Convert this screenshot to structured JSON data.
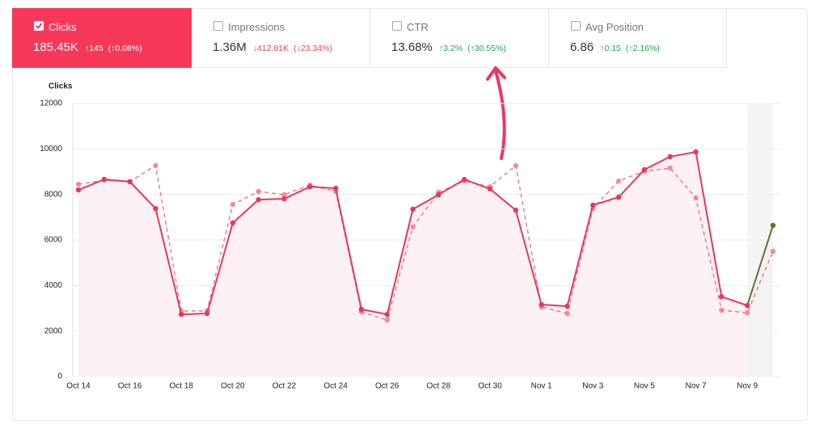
{
  "cards": [
    {
      "label": "Clicks",
      "value": "185.45K",
      "change": "↑145",
      "change_pct": "(↑0.08%)",
      "selected": true,
      "change_color": "#ffffff"
    },
    {
      "label": "Impressions",
      "value": "1.36M",
      "change": "↓412.81K",
      "change_pct": "(↓23.34%)",
      "selected": false,
      "change_color": "#e5484d"
    },
    {
      "label": "CTR",
      "value": "13.68%",
      "change": "↑3.2%",
      "change_pct": "(↑30.55%)",
      "selected": false,
      "change_color": "#1fa64a"
    },
    {
      "label": "Avg Position",
      "value": "6.86",
      "change": "↑0.15",
      "change_pct": "(↑2.16%)",
      "selected": false,
      "change_color": "#1fa64a"
    }
  ],
  "chart_data": {
    "type": "line",
    "y_label": "Clicks",
    "categories": [
      "Oct 14",
      null,
      "Oct 16",
      null,
      "Oct 18",
      null,
      "Oct 20",
      null,
      "Oct 22",
      null,
      "Oct 24",
      null,
      "Oct 26",
      null,
      "Oct 28",
      null,
      "Oct 30",
      null,
      "Nov 1",
      null,
      "Nov 3",
      null,
      "Nov 5",
      null,
      "Nov 7",
      null,
      "Nov 9",
      null
    ],
    "series": [
      {
        "color": "#e8385a",
        "partial_color": "#6b6b3a",
        "dashed": false,
        "values": [
          8200,
          8660,
          8560,
          7380,
          2730,
          2770,
          6750,
          7770,
          7810,
          8340,
          8270,
          2950,
          2730,
          7350,
          7990,
          8660,
          8240,
          7310,
          3160,
          3090,
          7530,
          7880,
          9090,
          9660,
          9870,
          3510,
          3120,
          6640
        ]
      },
      {
        "color": "#f07b91",
        "dashed": true,
        "values": [
          8450,
          8630,
          8560,
          9270,
          2880,
          2880,
          7560,
          8130,
          7990,
          8410,
          8130,
          2840,
          2480,
          6570,
          8090,
          8590,
          8340,
          9270,
          3050,
          2770,
          7380,
          8590,
          9020,
          9160,
          7850,
          2910,
          2800,
          5500
        ]
      }
    ],
    "ylim": [
      0,
      12000
    ],
    "yticks": [
      0,
      2000,
      4000,
      6000,
      8000,
      10000,
      12000
    ],
    "grid": true
  }
}
